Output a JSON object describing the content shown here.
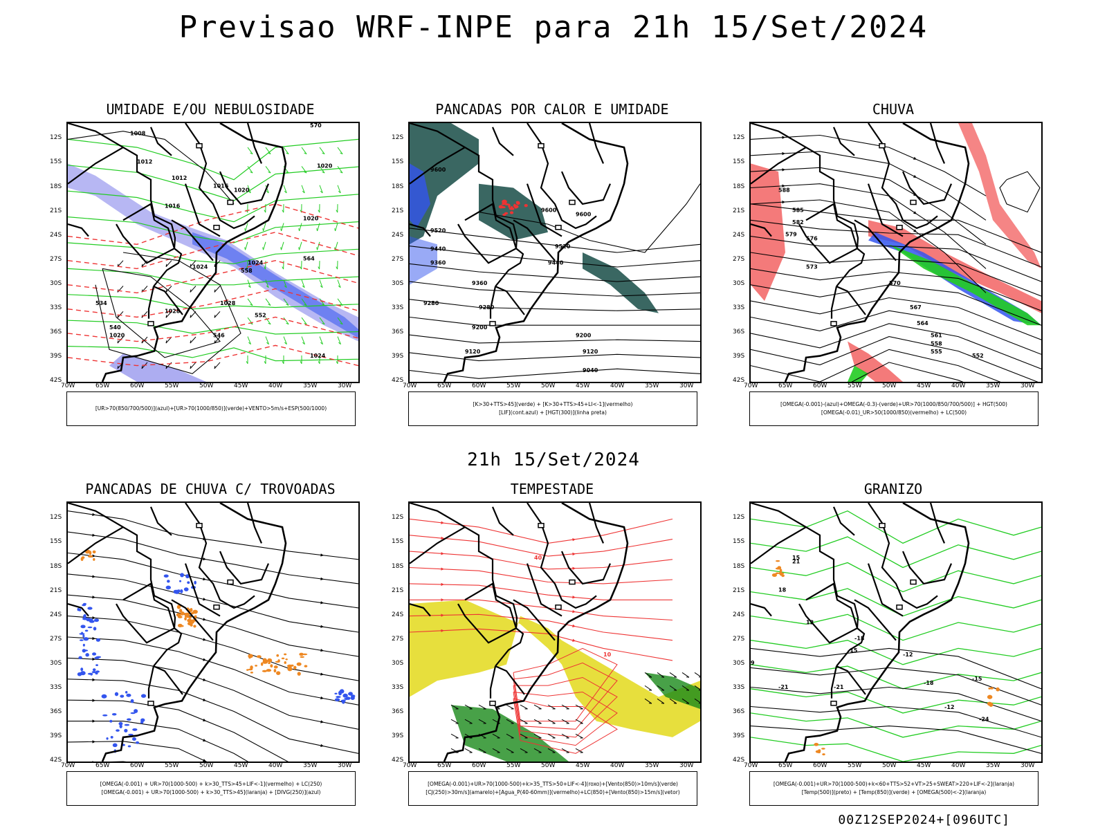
{
  "title": "Previsao WRF-INPE  para 21h 15/Set/2024",
  "middle_title": "21h 15/Set/2024",
  "footer": "00Z12SEP2024+[096UTC]",
  "lat_labels": [
    "12S",
    "15S",
    "18S",
    "21S",
    "24S",
    "27S",
    "30S",
    "33S",
    "36S",
    "39S",
    "42S"
  ],
  "lon_labels": [
    "70W",
    "65W",
    "60W",
    "55W",
    "50W",
    "45W",
    "40W",
    "35W",
    "30W"
  ],
  "colors": {
    "blue": "#3355ee",
    "green": "#22cc22",
    "red": "#ee3333",
    "orange": "#ee8822",
    "yellow": "#e6dd33",
    "teal": "#2f5f5a",
    "lavender": "#9999ee"
  },
  "panels": [
    {
      "title": "UMIDADE E/OU NEBULOSIDADE",
      "caption": [
        "[UR>70(850/700/500)](azul)+[UR>70(1000/850)](verde)+VENTO>5m/s+ESP(500/1000)"
      ],
      "contour_labels": [
        "1008",
        "1012",
        "1012",
        "1016",
        "1020",
        "1020",
        "1016",
        "1020",
        "1024",
        "1024",
        "1028",
        "1028",
        "1020",
        "1024",
        "570",
        "564",
        "558",
        "552",
        "546",
        "540",
        "534"
      ]
    },
    {
      "title": "PANCADAS POR CALOR E UMIDADE",
      "caption": [
        "[K>30+TTS>45](verde) + [K>30+TTS>45+LI<-1](vermelho)",
        "[LIF](cont.azul) + [HGT(300)](linha preta)"
      ],
      "contour_labels": [
        "9600",
        "9600",
        "9600",
        "9520",
        "9520",
        "9440",
        "9440",
        "9360",
        "9360",
        "9280",
        "9280",
        "9200",
        "9200",
        "9120",
        "9120",
        "9040"
      ]
    },
    {
      "title": "CHUVA",
      "caption": [
        "[OMEGA(-0.001)-(azul)+OMEGA(-0.3)-(verde)+UR>70(1000/850/700/500)] + HGT(500)",
        "[OMEGA(-0.01)_UR>50(1000/850)(vermelho) + LC(500)"
      ],
      "contour_labels": [
        "588",
        "585",
        "582",
        "579",
        "576",
        "573",
        "570",
        "567",
        "564",
        "561",
        "558",
        "555",
        "552"
      ]
    },
    {
      "title": "PANCADAS DE CHUVA C/ TROVOADAS",
      "caption": [
        "[OMEGA(-0.001) + UR>70(1000-500) + k>30_TTS>45+LIF<-1](vermelho) + LC(250)",
        "[OMEGA(-0.001) + UR>70(1000-500) + k>30_TTS>45](laranja) + [DIVG(250)](azul)"
      ],
      "contour_labels": []
    },
    {
      "title": "TEMPESTADE",
      "caption": [
        "[OMEGA(-0.001)+UR>70(1000-500)+k>35_TTS>50+LIF<-4](roxo)+[Vento(850)>10m/s](verde)",
        "[CJ(250)>30m/s](amarelo)+[Agua_P(40-60mm)](vermelho)+LC(850)+[Vento(850)>15m/s](vetor)"
      ],
      "contour_labels": [
        "40",
        "10"
      ]
    },
    {
      "title": "GRANIZO",
      "caption": [
        "[OMEGA(-0.001)+UR>70(1000-500)+k<60+TTS>52+VT>25+SWEAT>220+LIF<-2](laranja)",
        "[Temp(500)](preto) + [Temp(850)](verde) + [OMEGA(500)<-2](laranja)"
      ],
      "contour_labels": [
        "-18",
        "-15",
        "-12",
        "-21",
        "-18",
        "-15",
        "-12",
        "-21",
        "-24",
        "12",
        "15",
        "18",
        "21",
        "9"
      ]
    }
  ]
}
